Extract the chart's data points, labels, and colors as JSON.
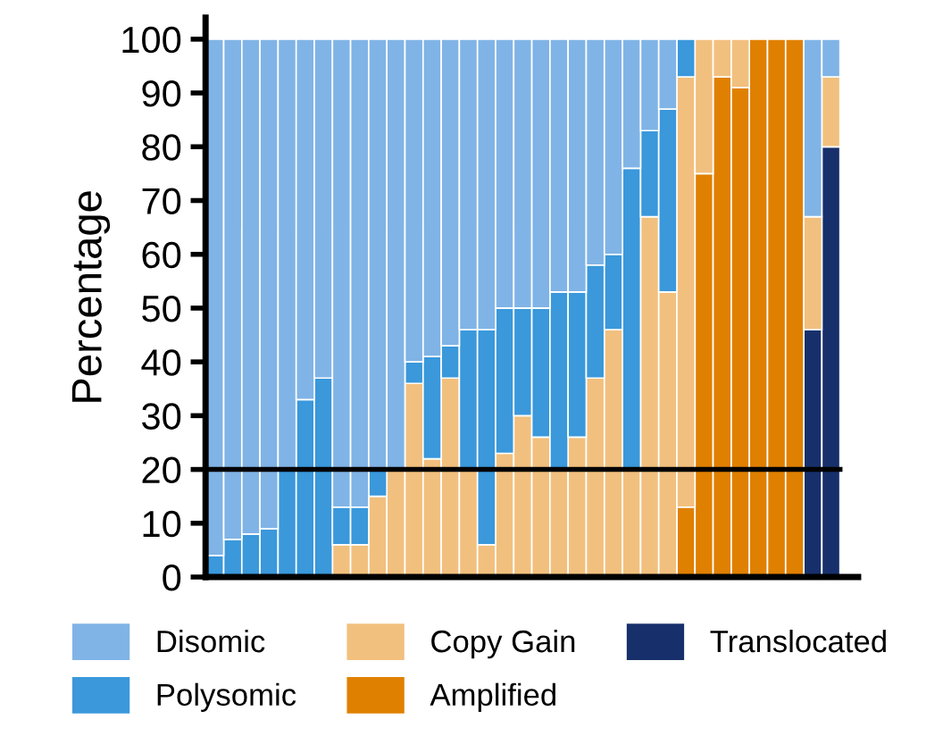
{
  "chart_data": {
    "type": "bar",
    "stacked": true,
    "ylabel": "Percentage",
    "categories": [
      null,
      null,
      null,
      null,
      null,
      null,
      null,
      null,
      null,
      null,
      null,
      null,
      null,
      null,
      null,
      null,
      null,
      null,
      null,
      null,
      null,
      null,
      null,
      null,
      null,
      null,
      null,
      null,
      null,
      null,
      null,
      null,
      null,
      null,
      null
    ],
    "series": [
      {
        "name": "Translocated",
        "color": "#17306b",
        "values": [
          0,
          0,
          0,
          0,
          0,
          0,
          0,
          0,
          0,
          0,
          0,
          0,
          0,
          0,
          0,
          0,
          0,
          0,
          0,
          0,
          0,
          0,
          0,
          0,
          0,
          0,
          0,
          0,
          0,
          0,
          0,
          0,
          0,
          46,
          80
        ]
      },
      {
        "name": "Amplified",
        "color": "#e08000",
        "values": [
          0,
          0,
          0,
          0,
          0,
          0,
          0,
          0,
          0,
          0,
          0,
          0,
          0,
          0,
          0,
          0,
          0,
          0,
          0,
          0,
          0,
          0,
          0,
          0,
          0,
          0,
          13,
          75,
          93,
          91,
          100,
          100,
          100,
          0,
          0
        ]
      },
      {
        "name": "Copy Gain",
        "color": "#f2c07e",
        "values": [
          0,
          0,
          0,
          0,
          0,
          0,
          0,
          6,
          6,
          15,
          20,
          36,
          22,
          37,
          20,
          6,
          23,
          30,
          26,
          20,
          26,
          37,
          46,
          20,
          67,
          53,
          80,
          25,
          7,
          9,
          0,
          0,
          0,
          21,
          13
        ]
      },
      {
        "name": "Polysomic",
        "color": "#3a98db",
        "values": [
          4,
          7,
          8,
          9,
          20,
          33,
          37,
          7,
          7,
          5,
          0,
          4,
          19,
          6,
          26,
          40,
          27,
          20,
          24,
          33,
          27,
          21,
          14,
          56,
          16,
          34,
          7,
          0,
          0,
          0,
          0,
          0,
          0,
          0,
          0
        ]
      },
      {
        "name": "Disomic",
        "color": "#80b4e6",
        "values": [
          96,
          93,
          92,
          91,
          80,
          67,
          63,
          87,
          87,
          80,
          80,
          60,
          59,
          57,
          54,
          54,
          50,
          50,
          50,
          47,
          47,
          42,
          40,
          24,
          17,
          13,
          0,
          0,
          0,
          0,
          0,
          0,
          0,
          33,
          7
        ]
      }
    ],
    "ylim": [
      0,
      104
    ],
    "yticks": [
      0,
      10,
      20,
      30,
      40,
      50,
      60,
      70,
      80,
      90,
      100
    ],
    "grid": false,
    "legend": "bottom",
    "ref_lines": [
      {
        "axis": "y",
        "value": 20,
        "color": "#000000"
      }
    ]
  }
}
